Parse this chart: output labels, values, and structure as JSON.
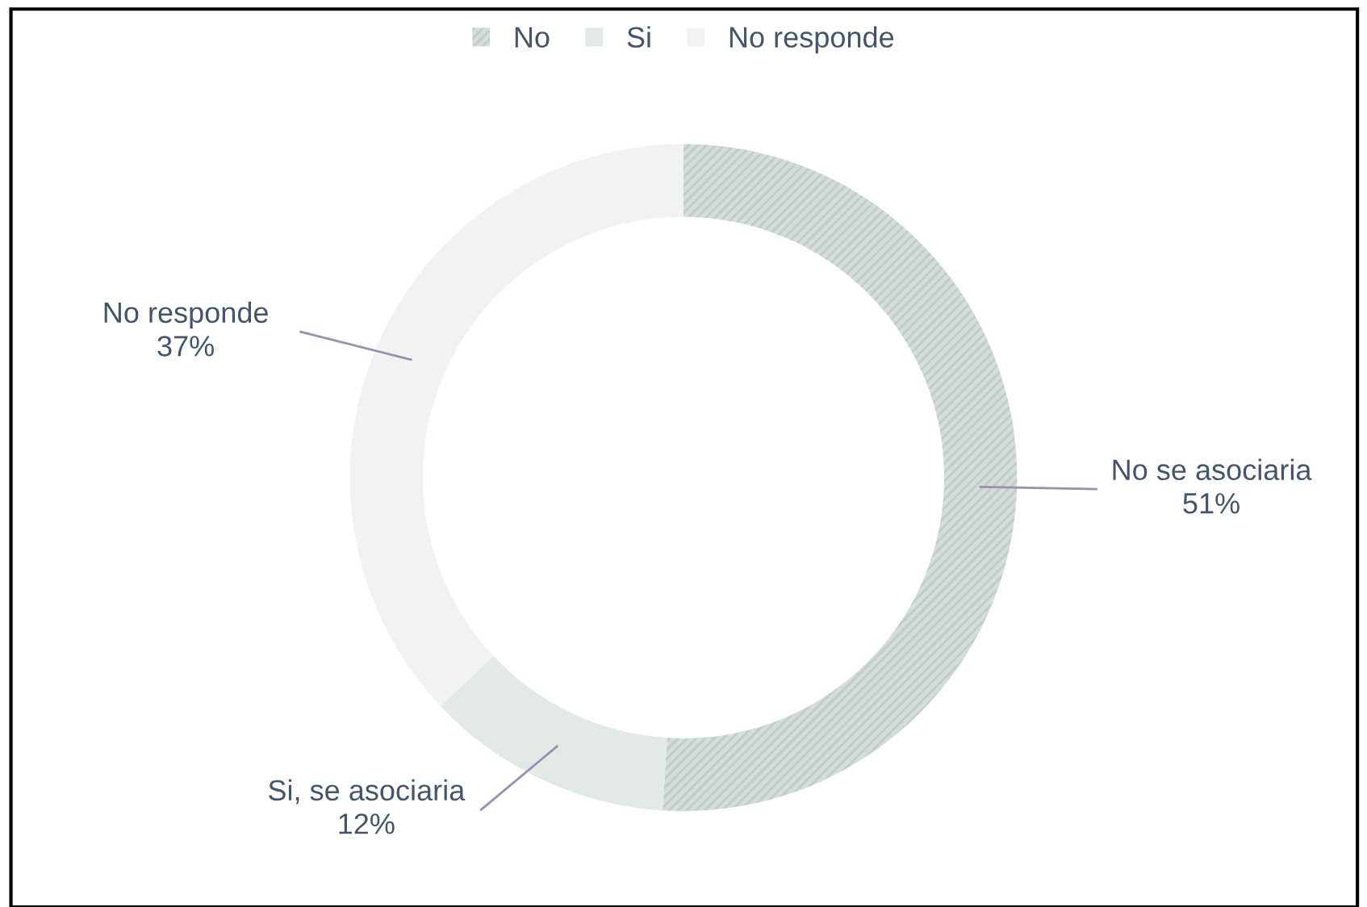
{
  "chart_data": {
    "type": "donut",
    "categories": [
      "No",
      "Si",
      "No responde"
    ],
    "values": [
      51,
      12,
      37
    ],
    "colors": [
      "#d5ddd8",
      "#e3eae5",
      "#f0f3f0"
    ],
    "value_labels": [
      "No se asociaria\n51%",
      "Si, se asociaria\n12%",
      "No responde\n37%"
    ],
    "legend": "top"
  }
}
